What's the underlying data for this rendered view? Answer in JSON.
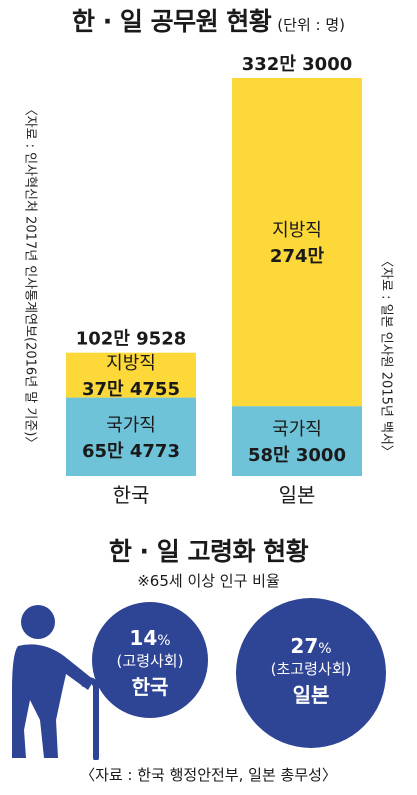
{
  "chart_data": [
    {
      "type": "bar",
      "stacked": true,
      "title": "한 · 일 공무원 현황",
      "unit": "(단위 : 명)",
      "categories": [
        "한국",
        "일본"
      ],
      "series": [
        {
          "name": "국가직",
          "values": [
            654773,
            583000
          ],
          "labels": [
            "65만 4773",
            "58만 3000"
          ],
          "color": "#6fc3d8"
        },
        {
          "name": "지방직",
          "values": [
            374755,
            2740000
          ],
          "labels": [
            "37만 4755",
            "274만"
          ],
          "color": "#fcd838"
        }
      ],
      "totals": [
        1029528,
        3323000
      ],
      "total_labels": [
        "102만 9528",
        "332만 3000"
      ],
      "source_korea": "〈자료 : 인사혁신처 2017년 인사통계연보(2016년 말 기준)〉",
      "source_japan": "〈자료 : 일본 인사원 2015년 백서〉"
    },
    {
      "type": "other",
      "title": "한 · 일 고령화 현황",
      "note": "※65세 이상 인구 비율",
      "items": [
        {
          "country": "한국",
          "value": 14,
          "percent": "14",
          "unit": "%",
          "category": "(고령사회)"
        },
        {
          "country": "일본",
          "value": 27,
          "percent": "27",
          "unit": "%",
          "category": "(초고령사회)"
        }
      ],
      "source": "〈자료 : 한국 행정안전부, 일본 총무성〉",
      "icon": "elderly-person-with-cane-icon",
      "color": "#2e4494"
    }
  ]
}
